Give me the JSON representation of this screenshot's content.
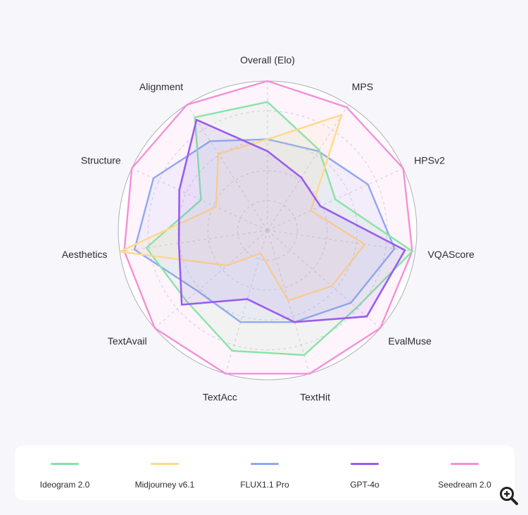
{
  "chart_data": {
    "type": "radar",
    "axes": [
      "Overall (Elo)",
      "MPS",
      "HPSv2",
      "VQAScore",
      "EvalMuse",
      "TextHit",
      "TextAcc",
      "TextAvail",
      "Aesthetics",
      "Structure",
      "Alignment"
    ],
    "range": [
      0,
      1
    ],
    "rings": 5,
    "grid": true,
    "legend_position": "bottom",
    "series": [
      {
        "name": "Ideogram 2.0",
        "color": "#86e4a8",
        "values": [
          0.86,
          0.64,
          0.5,
          0.98,
          0.79,
          0.87,
          0.84,
          0.72,
          0.82,
          0.49,
          0.9
        ]
      },
      {
        "name": "Midjourney v6.1",
        "color": "#ffd98a",
        "values": [
          0.61,
          0.92,
          0.32,
          0.66,
          0.57,
          0.49,
          0.16,
          0.36,
          1.0,
          0.38,
          0.61
        ]
      },
      {
        "name": "FLUX1.1 Pro",
        "color": "#8fa7f5",
        "values": [
          0.61,
          0.63,
          0.74,
          0.86,
          0.74,
          0.64,
          0.64,
          0.62,
          0.9,
          0.84,
          0.71
        ]
      },
      {
        "name": "GPT-4o",
        "color": "#9b5bf0",
        "values": [
          0.53,
          0.42,
          0.39,
          0.93,
          0.88,
          0.64,
          0.48,
          0.76,
          0.6,
          0.65,
          0.88
        ]
      },
      {
        "name": "Seedream 2.0",
        "color": "#f58fd8",
        "values": [
          1.0,
          0.98,
          1.0,
          0.98,
          1.0,
          1.0,
          1.0,
          1.0,
          0.97,
          1.0,
          1.0
        ]
      }
    ]
  },
  "controls": {
    "zoom_icon": "zoom-in-icon"
  }
}
